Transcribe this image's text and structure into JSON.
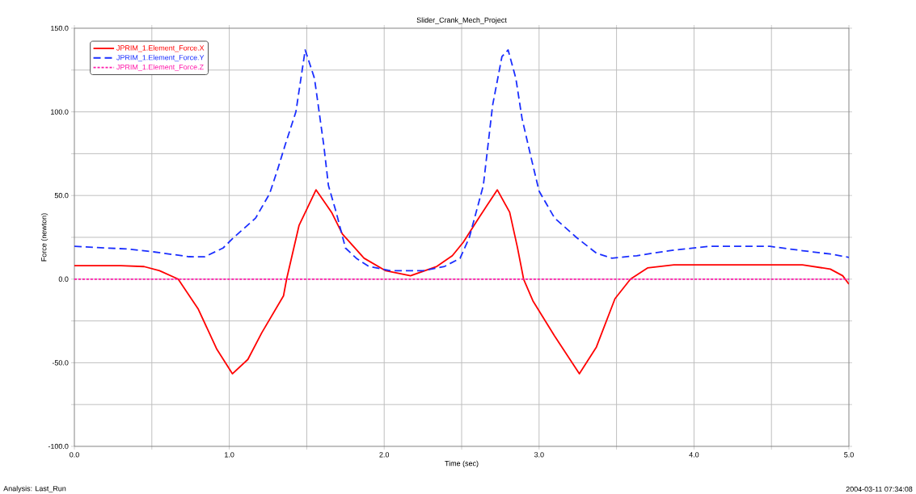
{
  "chart_data": {
    "type": "line",
    "title": "Slider_Crank_Mech_Project",
    "xlabel": "Time (sec)",
    "ylabel": "Force (newton)",
    "annotations": [
      "Analysis:  Last_Run",
      "2004-03-11 07:34:08"
    ],
    "xlim": [
      0,
      5
    ],
    "ylim": [
      -100,
      150
    ],
    "xticks": [
      {
        "value": 0,
        "label": "0.0"
      },
      {
        "value": 0.5,
        "label": null
      },
      {
        "value": 1,
        "label": "1.0"
      },
      {
        "value": 1.5,
        "label": null
      },
      {
        "value": 2,
        "label": "2.0"
      },
      {
        "value": 2.5,
        "label": null
      },
      {
        "value": 3,
        "label": "3.0"
      },
      {
        "value": 3.5,
        "label": null
      },
      {
        "value": 4,
        "label": "4.0"
      },
      {
        "value": 4.5,
        "label": null
      },
      {
        "value": 5,
        "label": "5.0"
      }
    ],
    "yticks": [
      {
        "value": -100,
        "label": "-100.0"
      },
      {
        "value": -75,
        "label": null
      },
      {
        "value": -50,
        "label": "-50.0"
      },
      {
        "value": -25,
        "label": null
      },
      {
        "value": 0,
        "label": "0.0"
      },
      {
        "value": 25,
        "label": null
      },
      {
        "value": 50,
        "label": "50.0"
      },
      {
        "value": 75,
        "label": null
      },
      {
        "value": 100,
        "label": "100.0"
      },
      {
        "value": 125,
        "label": null
      },
      {
        "value": 150,
        "label": "150.0"
      }
    ],
    "grid": true,
    "legend": "top left",
    "series": [
      {
        "name": "JPRIM_1.Element_Force.X",
        "color": "#ff0000",
        "line_style": "solid",
        "x": [
          0,
          0.3,
          0.45,
          0.55,
          0.67,
          0.8,
          0.92,
          1.02,
          1.12,
          1.21,
          1.35,
          1.37,
          1.45,
          1.56,
          1.66,
          1.73,
          1.87,
          2.01,
          2.17,
          2.34,
          2.44,
          2.51,
          2.61,
          2.73,
          2.81,
          2.86,
          2.9,
          2.96,
          3.1,
          3.26,
          3.37,
          3.49,
          3.59,
          3.7,
          3.87,
          4.3,
          4.7,
          4.88,
          4.96,
          5.0
        ],
        "values": [
          8,
          8,
          7.5,
          5,
          0,
          -18,
          -42,
          -56.6,
          -48,
          -32,
          -10,
          0,
          32,
          53.4,
          40,
          27,
          12.5,
          5,
          2,
          7.6,
          14,
          22,
          36.5,
          53.4,
          40,
          19,
          0,
          -13,
          -34,
          -56.6,
          -40.6,
          -11.7,
          0,
          6.7,
          8.5,
          8.5,
          8.5,
          6,
          2,
          -3
        ]
      },
      {
        "name": "JPRIM_1.Element_Force.Y",
        "color": "#1a2eff",
        "line_style": "dashed",
        "x": [
          0,
          0.34,
          0.51,
          0.74,
          0.84,
          0.96,
          1.03,
          1.17,
          1.26,
          1.31,
          1.36,
          1.43,
          1.49,
          1.55,
          1.61,
          1.64,
          1.69,
          1.75,
          1.82,
          1.9,
          2.04,
          2.25,
          2.39,
          2.49,
          2.55,
          2.64,
          2.7,
          2.76,
          2.8,
          2.85,
          2.89,
          2.95,
          3.0,
          3.1,
          3.24,
          3.37,
          3.47,
          3.63,
          3.84,
          4.1,
          4.49,
          4.7,
          4.88,
          5.0
        ],
        "values": [
          19.6,
          18,
          16.3,
          13.4,
          13.3,
          18.6,
          25,
          36.5,
          51,
          65,
          80,
          100,
          137,
          120,
          80,
          56,
          40,
          18.6,
          12.5,
          7.6,
          5,
          5,
          7.6,
          12.5,
          25,
          56,
          104,
          133,
          137,
          120,
          96,
          72,
          52.6,
          36.5,
          25,
          15.5,
          12.5,
          14,
          17,
          19.6,
          19.6,
          17,
          15,
          13
        ]
      },
      {
        "name": "JPRIM_1.Element_Force.Z",
        "color": "#ff1aaa",
        "line_style": "dotted",
        "x": [
          0,
          5
        ],
        "values": [
          0,
          0
        ]
      }
    ]
  }
}
